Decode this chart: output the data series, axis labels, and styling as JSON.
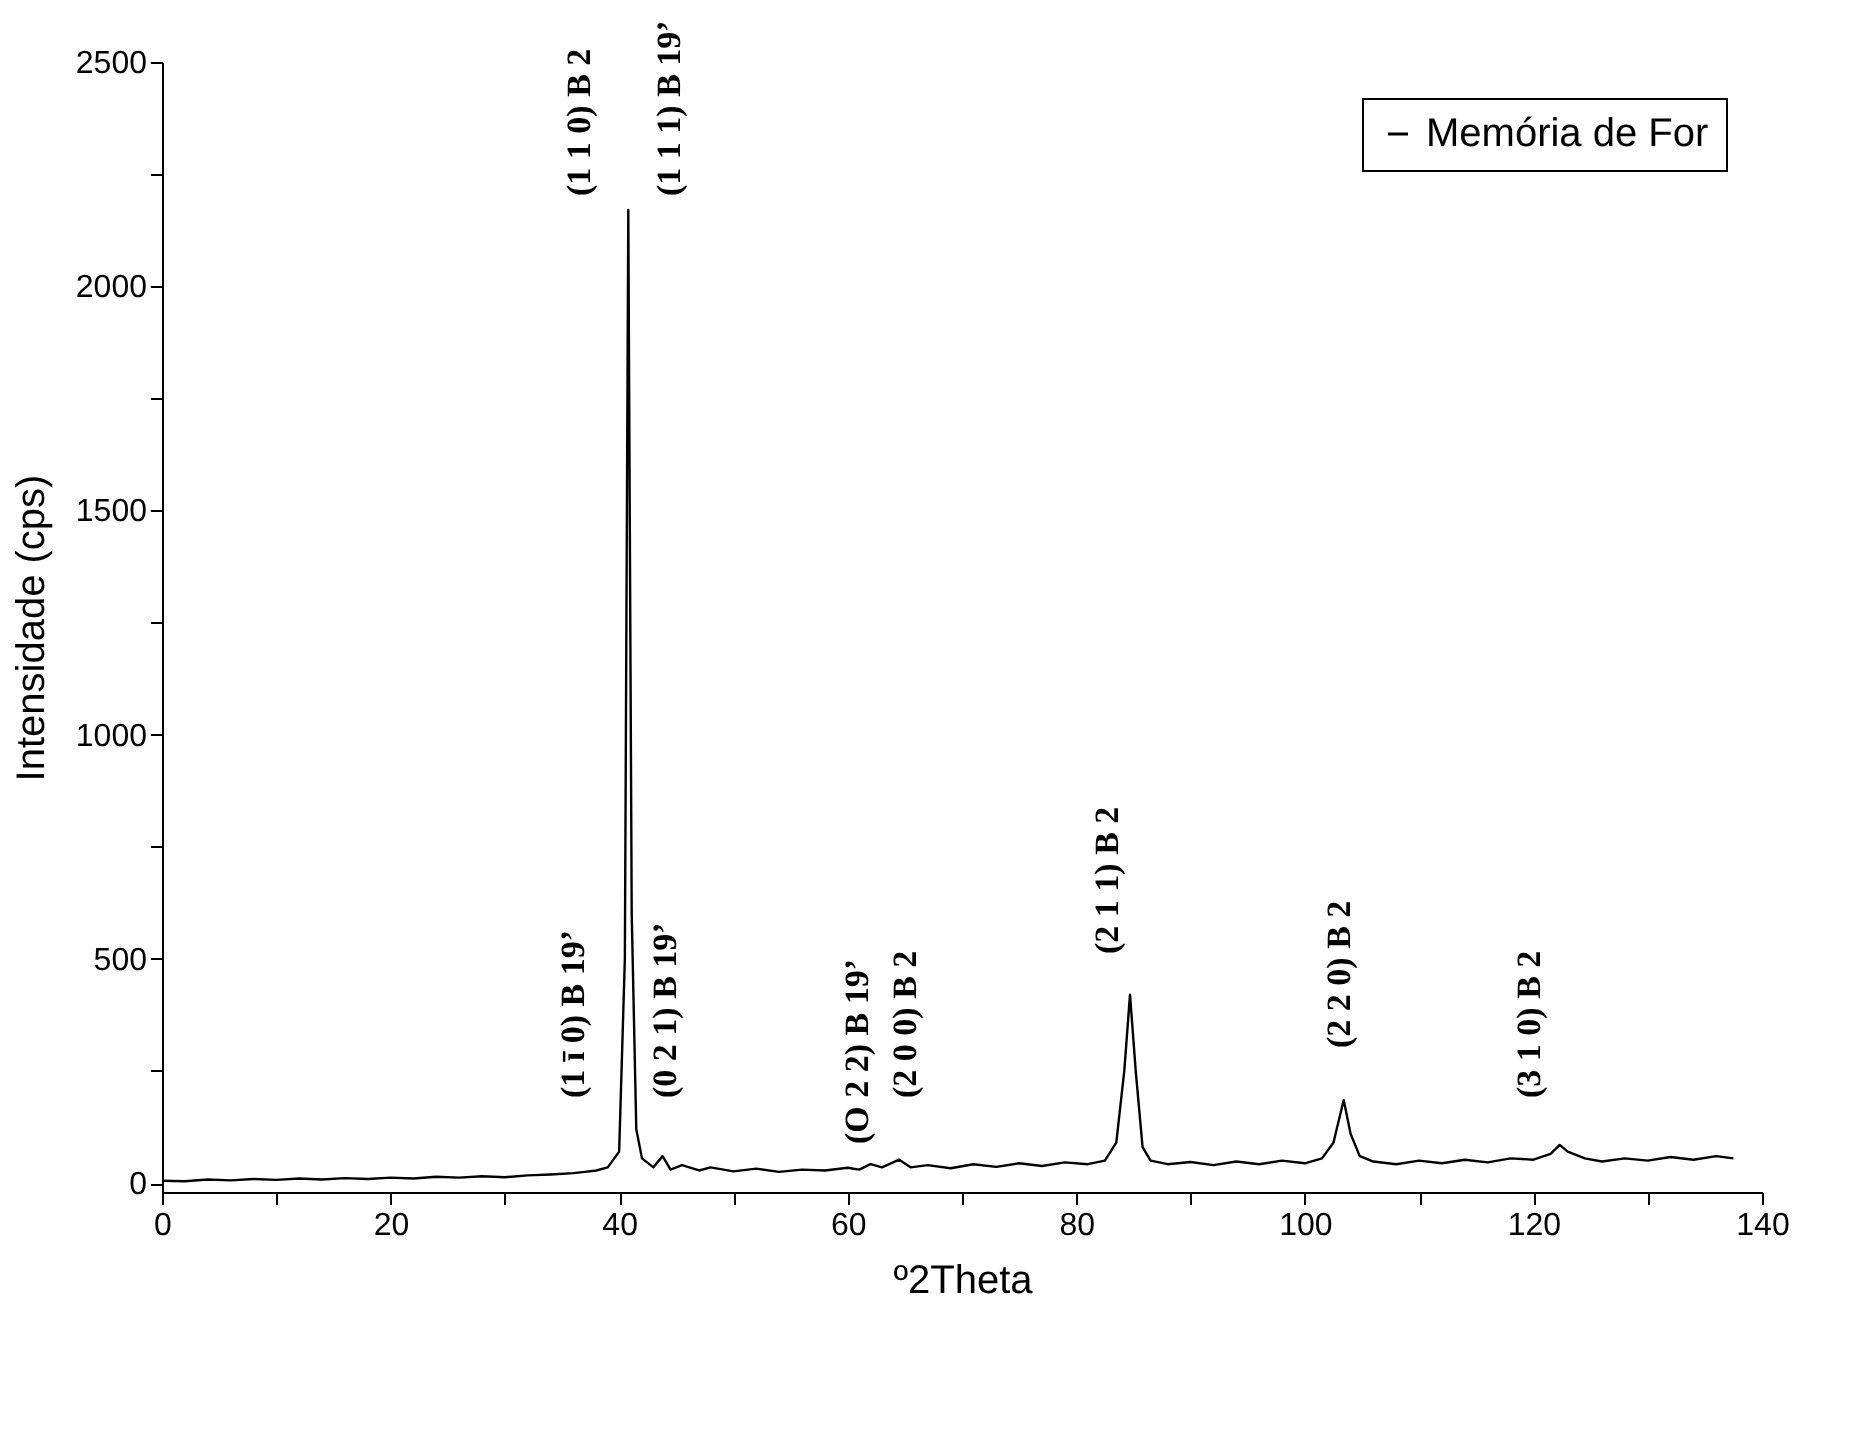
{
  "chart_data": {
    "type": "line",
    "xlabel": "º2Theta",
    "ylabel": "Intensidade (cps)",
    "xlim": [
      0,
      140
    ],
    "ylim": [
      -20,
      2500
    ],
    "xticks": [
      0,
      {
        "value": 10,
        "label": null
      },
      20,
      {
        "value": 30,
        "label": null
      },
      40,
      {
        "value": 50,
        "label": null
      },
      60,
      {
        "value": 70,
        "label": null
      },
      80,
      {
        "value": 90,
        "label": null
      },
      100,
      {
        "value": 110,
        "label": null
      },
      120,
      {
        "value": 130,
        "label": null
      },
      140
    ],
    "yticks": [
      0,
      {
        "value": 250,
        "label": null
      },
      500,
      {
        "value": 750,
        "label": null
      },
      1000,
      {
        "value": 1250,
        "label": null
      },
      1500,
      {
        "value": 1750,
        "label": null
      },
      2000,
      {
        "value": 2250,
        "label": null
      },
      2500
    ],
    "grid": false,
    "legend": "top right",
    "marker": "none",
    "line_style": "solid",
    "series": [
      {
        "name": "Memória de For",
        "color": "#000000",
        "x": [
          0,
          2,
          4,
          6,
          8,
          10,
          12,
          14,
          16,
          18,
          20,
          22,
          24,
          26,
          28,
          30,
          32,
          34,
          36,
          37,
          38,
          39,
          40,
          40.5,
          40.8,
          41.1,
          41.5,
          42,
          43,
          43.8,
          44.5,
          45.5,
          47,
          48,
          50,
          52,
          54,
          56,
          58,
          60,
          61,
          62,
          63,
          64.5,
          65.5,
          67,
          69,
          71,
          73,
          75,
          77,
          79,
          81,
          82.5,
          83.5,
          84.2,
          84.7,
          85.2,
          85.8,
          86.5,
          88,
          90,
          92,
          94,
          96,
          98,
          100,
          101.5,
          102.5,
          103.4,
          104,
          104.8,
          106,
          108,
          110,
          112,
          114,
          116,
          118,
          120,
          121.5,
          122.3,
          123,
          124.5,
          126,
          128,
          130,
          132,
          134,
          136,
          137.5
        ],
        "values": [
          5,
          4,
          8,
          6,
          9,
          7,
          10,
          8,
          11,
          9,
          12,
          10,
          14,
          12,
          15,
          13,
          17,
          19,
          22,
          25,
          28,
          35,
          70,
          500,
          2170,
          600,
          120,
          55,
          35,
          60,
          30,
          40,
          28,
          35,
          26,
          32,
          25,
          30,
          28,
          34,
          30,
          42,
          35,
          52,
          35,
          40,
          33,
          42,
          36,
          44,
          38,
          46,
          42,
          50,
          90,
          250,
          420,
          250,
          80,
          50,
          42,
          47,
          40,
          48,
          42,
          50,
          44,
          55,
          90,
          185,
          110,
          60,
          48,
          42,
          50,
          44,
          52,
          46,
          55,
          52,
          65,
          85,
          70,
          55,
          48,
          55,
          50,
          58,
          52,
          60,
          55
        ]
      }
    ],
    "annotations": [
      "(1 1 0)  B 2",
      "(1 1 1)  B 19’",
      "(1 ī 0) B 19’",
      "(0 2 1) B 19’",
      "(O 2 2) B 19’",
      "(2 0 0) B 2",
      "(2 1 1) B 2",
      "(2 2 0)  B 2",
      "(3 1 0)  B 2"
    ]
  }
}
